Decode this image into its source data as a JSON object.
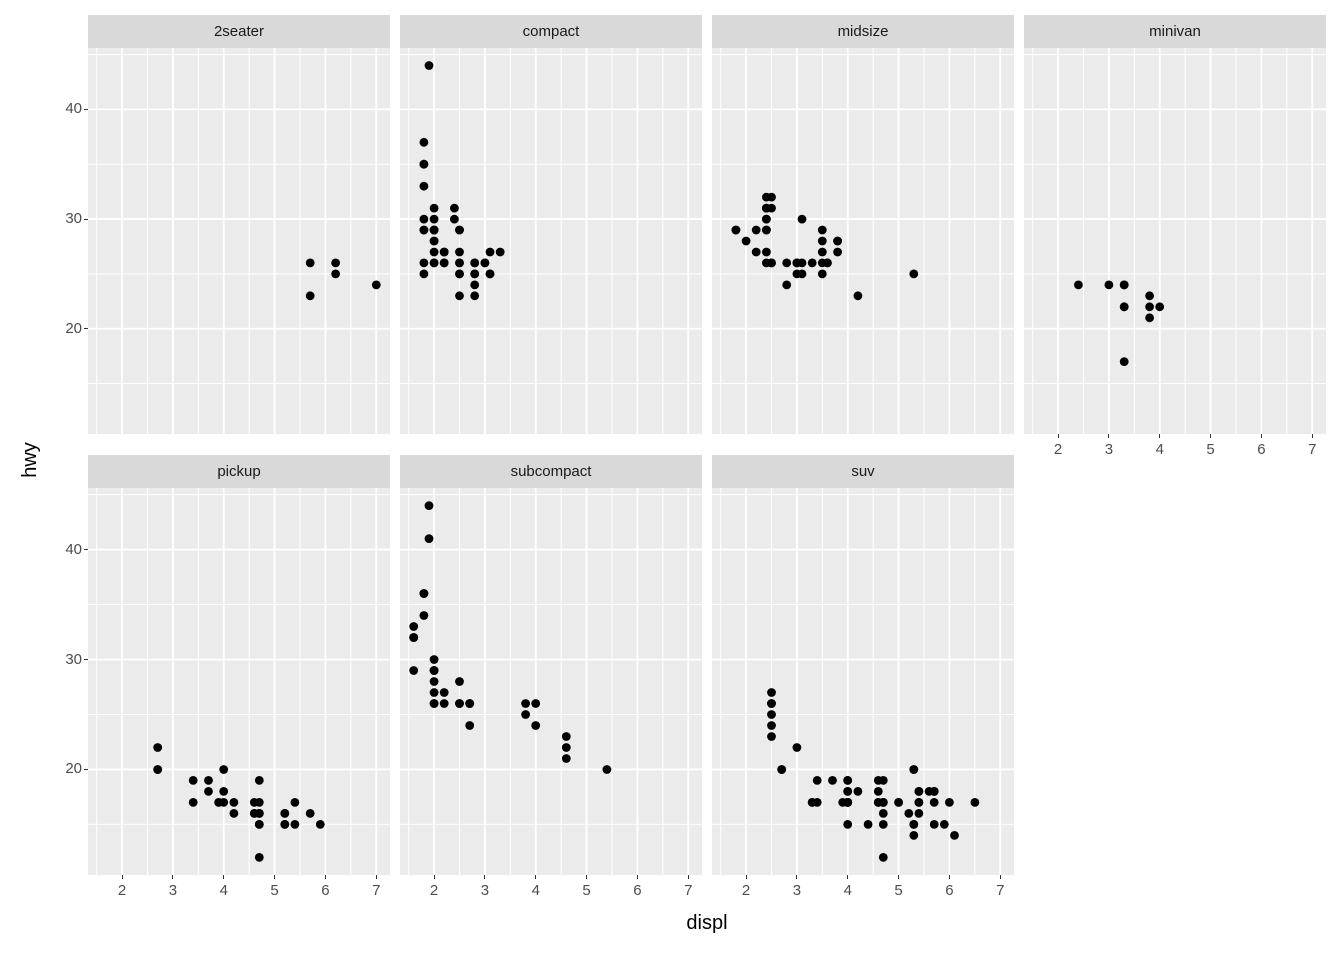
{
  "chart_data": {
    "type": "scatter",
    "title": "",
    "xlabel": "displ",
    "ylabel": "hwy",
    "facet_variable": "class",
    "legend": "none",
    "grid": true,
    "x_ticks": [
      2,
      3,
      4,
      5,
      6,
      7
    ],
    "y_ticks": [
      20,
      30,
      40
    ],
    "x_minor_ticks": [
      1.5,
      2.5,
      3.5,
      4.5,
      5.5,
      6.5
    ],
    "y_minor_ticks": [
      15,
      25,
      35,
      45
    ],
    "x_range": [
      1.33,
      7.27
    ],
    "y_range": [
      10.4,
      45.6
    ],
    "colors": {
      "background": "#FFFFFF",
      "panel_bg": "#EBEBEB",
      "strip_bg": "#D9D9D9",
      "gridline": "#FFFFFF",
      "point": "#000000",
      "tick_mark": "#333333",
      "tick_label": "#4D4D4D",
      "strip_text": "#1A1A1A",
      "axis_title": "#000000"
    },
    "facets": [
      {
        "label": "2seater",
        "points": [
          [
            5.7,
            26
          ],
          [
            5.7,
            23
          ],
          [
            6.2,
            26
          ],
          [
            6.2,
            25
          ],
          [
            7.0,
            24
          ]
        ]
      },
      {
        "label": "compact",
        "points": [
          [
            1.8,
            29
          ],
          [
            1.8,
            29
          ],
          [
            2.0,
            31
          ],
          [
            2.0,
            30
          ],
          [
            2.8,
            26
          ],
          [
            2.8,
            26
          ],
          [
            3.1,
            27
          ],
          [
            1.8,
            26
          ],
          [
            1.8,
            25
          ],
          [
            2.0,
            28
          ],
          [
            2.0,
            27
          ],
          [
            2.8,
            25
          ],
          [
            2.8,
            25
          ],
          [
            3.1,
            25
          ],
          [
            3.1,
            25
          ],
          [
            2.2,
            26
          ],
          [
            2.2,
            27
          ],
          [
            2.5,
            26
          ],
          [
            2.5,
            25
          ],
          [
            2.5,
            27
          ],
          [
            2.5,
            25
          ],
          [
            2.5,
            26
          ],
          [
            2.5,
            23
          ],
          [
            2.2,
            26
          ],
          [
            2.2,
            27
          ],
          [
            2.4,
            30
          ],
          [
            2.4,
            31
          ],
          [
            3.0,
            26
          ],
          [
            3.0,
            26
          ],
          [
            3.3,
            27
          ],
          [
            1.8,
            30
          ],
          [
            1.8,
            33
          ],
          [
            1.8,
            35
          ],
          [
            1.8,
            37
          ],
          [
            1.8,
            35
          ],
          [
            2.0,
            26
          ],
          [
            2.0,
            29
          ],
          [
            2.0,
            29
          ],
          [
            2.0,
            28
          ],
          [
            2.8,
            24
          ],
          [
            1.9,
            44
          ],
          [
            2.0,
            29
          ],
          [
            2.0,
            26
          ],
          [
            2.0,
            29
          ],
          [
            2.5,
            29
          ],
          [
            2.5,
            29
          ],
          [
            2.8,
            23
          ]
        ]
      },
      {
        "label": "midsize",
        "points": [
          [
            2.8,
            24
          ],
          [
            3.1,
            25
          ],
          [
            4.2,
            23
          ],
          [
            2.4,
            30
          ],
          [
            2.4,
            29
          ],
          [
            3.1,
            26
          ],
          [
            3.5,
            29
          ],
          [
            3.6,
            26
          ],
          [
            2.4,
            26
          ],
          [
            2.4,
            27
          ],
          [
            2.4,
            30
          ],
          [
            2.4,
            31
          ],
          [
            2.5,
            26
          ],
          [
            2.5,
            26
          ],
          [
            3.3,
            26
          ],
          [
            2.4,
            29
          ],
          [
            2.4,
            32
          ],
          [
            2.5,
            31
          ],
          [
            2.5,
            32
          ],
          [
            3.5,
            26
          ],
          [
            3.5,
            27
          ],
          [
            3.0,
            26
          ],
          [
            3.0,
            25
          ],
          [
            3.5,
            25
          ],
          [
            3.1,
            30
          ],
          [
            3.8,
            28
          ],
          [
            3.8,
            27
          ],
          [
            3.8,
            28
          ],
          [
            5.3,
            25
          ],
          [
            2.2,
            27
          ],
          [
            2.2,
            29
          ],
          [
            2.4,
            31
          ],
          [
            2.4,
            31
          ],
          [
            3.0,
            26
          ],
          [
            3.0,
            26
          ],
          [
            3.5,
            28
          ],
          [
            1.8,
            29
          ],
          [
            1.8,
            29
          ],
          [
            2.0,
            28
          ],
          [
            2.8,
            26
          ],
          [
            3.6,
            26
          ]
        ]
      },
      {
        "label": "minivan",
        "points": [
          [
            2.4,
            24
          ],
          [
            3.0,
            24
          ],
          [
            3.3,
            22
          ],
          [
            3.3,
            22
          ],
          [
            3.3,
            24
          ],
          [
            3.3,
            24
          ],
          [
            3.3,
            17
          ],
          [
            3.8,
            22
          ],
          [
            3.8,
            21
          ],
          [
            3.8,
            23
          ],
          [
            4.0,
            22
          ]
        ]
      },
      {
        "label": "pickup",
        "points": [
          [
            3.7,
            19
          ],
          [
            3.7,
            18
          ],
          [
            3.9,
            17
          ],
          [
            3.9,
            17
          ],
          [
            4.7,
            16
          ],
          [
            4.7,
            19
          ],
          [
            4.7,
            12
          ],
          [
            5.2,
            16
          ],
          [
            5.2,
            15
          ],
          [
            4.7,
            16
          ],
          [
            4.7,
            15
          ],
          [
            4.7,
            16
          ],
          [
            4.7,
            17
          ],
          [
            4.7,
            15
          ],
          [
            5.2,
            16
          ],
          [
            5.2,
            15
          ],
          [
            5.7,
            16
          ],
          [
            5.9,
            15
          ],
          [
            4.2,
            17
          ],
          [
            4.2,
            16
          ],
          [
            4.6,
            16
          ],
          [
            4.6,
            17
          ],
          [
            4.6,
            16
          ],
          [
            5.4,
            17
          ],
          [
            5.4,
            15
          ],
          [
            2.7,
            22
          ],
          [
            2.7,
            20
          ],
          [
            2.7,
            20
          ],
          [
            3.4,
            19
          ],
          [
            3.4,
            17
          ],
          [
            4.0,
            18
          ],
          [
            4.0,
            20
          ],
          [
            4.0,
            17
          ]
        ]
      },
      {
        "label": "subcompact",
        "points": [
          [
            1.6,
            33
          ],
          [
            1.6,
            32
          ],
          [
            1.6,
            32
          ],
          [
            1.6,
            29
          ],
          [
            1.6,
            32
          ],
          [
            1.8,
            34
          ],
          [
            1.8,
            36
          ],
          [
            1.8,
            36
          ],
          [
            2.0,
            29
          ],
          [
            1.9,
            44
          ],
          [
            1.9,
            41
          ],
          [
            2.0,
            29
          ],
          [
            2.0,
            26
          ],
          [
            2.0,
            28
          ],
          [
            2.0,
            26
          ],
          [
            2.0,
            27
          ],
          [
            2.0,
            30
          ],
          [
            2.0,
            29
          ],
          [
            2.7,
            26
          ],
          [
            2.7,
            26
          ],
          [
            2.7,
            26
          ],
          [
            2.2,
            26
          ],
          [
            2.2,
            27
          ],
          [
            2.5,
            26
          ],
          [
            2.5,
            26
          ],
          [
            2.5,
            28
          ],
          [
            2.7,
            24
          ],
          [
            3.8,
            26
          ],
          [
            3.8,
            25
          ],
          [
            4.0,
            26
          ],
          [
            4.0,
            24
          ],
          [
            4.6,
            23
          ],
          [
            4.6,
            22
          ],
          [
            4.6,
            21
          ],
          [
            5.4,
            20
          ]
        ]
      },
      {
        "label": "suv",
        "points": [
          [
            5.3,
            20
          ],
          [
            5.3,
            15
          ],
          [
            5.3,
            20
          ],
          [
            5.7,
            17
          ],
          [
            6.0,
            17
          ],
          [
            5.3,
            15
          ],
          [
            5.3,
            14
          ],
          [
            5.7,
            15
          ],
          [
            6.5,
            17
          ],
          [
            3.9,
            17
          ],
          [
            4.7,
            17
          ],
          [
            4.7,
            17
          ],
          [
            4.7,
            16
          ],
          [
            5.2,
            16
          ],
          [
            5.7,
            18
          ],
          [
            5.9,
            15
          ],
          [
            4.6,
            17
          ],
          [
            5.4,
            17
          ],
          [
            5.4,
            18
          ],
          [
            4.0,
            17
          ],
          [
            4.0,
            17
          ],
          [
            4.0,
            18
          ],
          [
            4.0,
            17
          ],
          [
            4.6,
            19
          ],
          [
            5.0,
            17
          ],
          [
            3.0,
            22
          ],
          [
            3.7,
            19
          ],
          [
            4.0,
            17
          ],
          [
            4.0,
            19
          ],
          [
            4.7,
            12
          ],
          [
            4.7,
            19
          ],
          [
            5.7,
            18
          ],
          [
            6.1,
            14
          ],
          [
            4.0,
            15
          ],
          [
            4.2,
            18
          ],
          [
            4.4,
            15
          ],
          [
            4.6,
            17
          ],
          [
            5.4,
            17
          ],
          [
            5.4,
            16
          ],
          [
            5.4,
            18
          ],
          [
            4.0,
            17
          ],
          [
            4.0,
            19
          ],
          [
            4.6,
            18
          ],
          [
            5.0,
            17
          ],
          [
            3.3,
            17
          ],
          [
            3.3,
            17
          ],
          [
            4.0,
            18
          ],
          [
            5.6,
            18
          ],
          [
            2.5,
            26
          ],
          [
            2.5,
            24
          ],
          [
            2.5,
            26
          ],
          [
            2.5,
            25
          ],
          [
            2.5,
            23
          ],
          [
            2.5,
            27
          ],
          [
            2.7,
            20
          ],
          [
            2.7,
            20
          ],
          [
            3.4,
            19
          ],
          [
            3.4,
            17
          ],
          [
            4.0,
            17
          ],
          [
            4.7,
            17
          ],
          [
            4.7,
            15
          ],
          [
            5.7,
            18
          ]
        ]
      }
    ]
  }
}
